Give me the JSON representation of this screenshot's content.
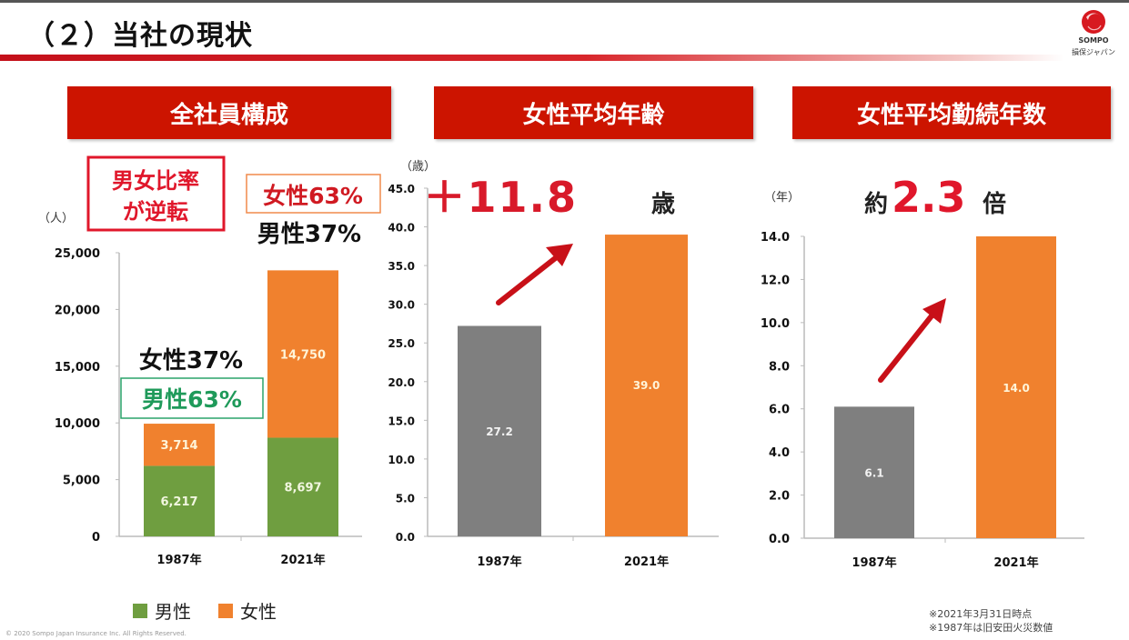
{
  "header": {
    "title": "（２）当社の現状",
    "logo_brand": "SOMPO",
    "logo_name": "損保ジャパン"
  },
  "sections": [
    {
      "title": "全社員構成"
    },
    {
      "title": "女性平均年齢"
    },
    {
      "title": "女性平均勤続年数"
    }
  ],
  "annotations": {
    "reversal_line1": "男女比率",
    "reversal_line2": "が逆転",
    "female_2021": "女性63%",
    "male_2021": "男性37%",
    "female_1987": "女性37%",
    "male_1987": "男性63%",
    "age_increase_prefix": "＋11.8",
    "age_increase_unit": "歳",
    "tenure_prefix": "約",
    "tenure_value": "2.3",
    "tenure_unit": "倍"
  },
  "legend": {
    "male": "男性",
    "female": "女性"
  },
  "notes": [
    "※2021年3月31日時点",
    "※1987年は旧安田火災数値"
  ],
  "copyright": "© 2020 Sompo Japan Insurance Inc. All Rights Reserved.",
  "colors": {
    "male": "#6f9e40",
    "female": "#f0812e",
    "gray": "#7f7f7f",
    "accent_red": "#cc1400",
    "title_red": "#e0172b",
    "green_text": "#1f9a5a"
  },
  "chart_data": [
    {
      "type": "bar",
      "stacked": true,
      "title": "全社員構成",
      "ylabel": "（人）",
      "categories": [
        "1987年",
        "2021年"
      ],
      "series": [
        {
          "name": "男性",
          "values": [
            6217,
            8697
          ],
          "labels": [
            "6,217",
            "8,697"
          ]
        },
        {
          "name": "女性",
          "values": [
            3714,
            14750
          ],
          "labels": [
            "3,714",
            "14,750"
          ]
        }
      ],
      "ylim": [
        0,
        25000
      ],
      "yticks": [
        0,
        5000,
        10000,
        15000,
        20000,
        25000
      ],
      "ytick_labels": [
        "0",
        "5,000",
        "10,000",
        "15,000",
        "20,000",
        "25,000"
      ],
      "legend": "bottom",
      "grid": false
    },
    {
      "type": "bar",
      "title": "女性平均年齢",
      "ylabel": "（歳）",
      "categories": [
        "1987年",
        "2021年"
      ],
      "values": [
        27.2,
        39.0
      ],
      "labels": [
        "27.2",
        "39.0"
      ],
      "ylim": [
        0,
        45
      ],
      "yticks": [
        0,
        5,
        10,
        15,
        20,
        25,
        30,
        35,
        40,
        45
      ],
      "ytick_labels": [
        "0.0",
        "5.0",
        "10.0",
        "15.0",
        "20.0",
        "25.0",
        "30.0",
        "35.0",
        "40.0",
        "45.0"
      ],
      "grid": false
    },
    {
      "type": "bar",
      "title": "女性平均勤続年数",
      "ylabel": "（年）",
      "categories": [
        "1987年",
        "2021年"
      ],
      "values": [
        6.1,
        14.0
      ],
      "labels": [
        "6.1",
        "14.0"
      ],
      "ylim": [
        0,
        14
      ],
      "yticks": [
        0,
        2,
        4,
        6,
        8,
        10,
        12,
        14
      ],
      "ytick_labels": [
        "0.0",
        "2.0",
        "4.0",
        "6.0",
        "8.0",
        "10.0",
        "12.0",
        "14.0"
      ],
      "grid": false
    }
  ]
}
